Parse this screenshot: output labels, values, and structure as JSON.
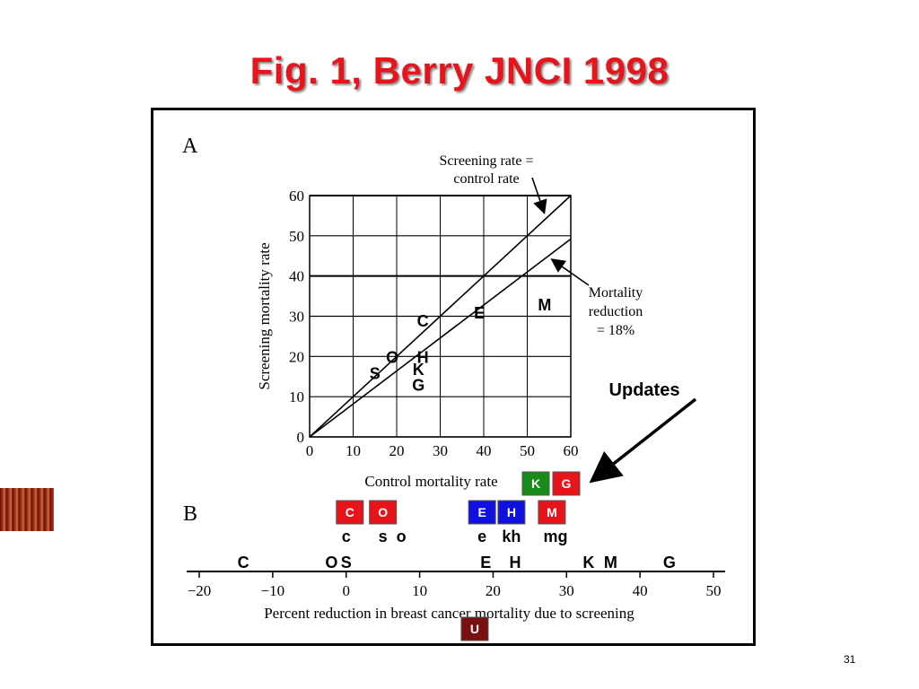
{
  "slide": {
    "title": "Fig. 1, Berry JNCI 1998",
    "page_number": "31",
    "updates_label": "Updates"
  },
  "colors": {
    "title": "#e8141b",
    "red_box": "#e8141b",
    "green_box": "#1a8a1a",
    "blue_box": "#1010e0",
    "maroon_box": "#7a1010"
  },
  "chart_data": [
    {
      "type": "scatter",
      "panel_label": "A",
      "xlabel": "Control mortality rate",
      "ylabel": "Screening mortality rate",
      "xlim": [
        0,
        60
      ],
      "ylim": [
        0,
        60
      ],
      "x_ticks": [
        "0",
        "10",
        "20",
        "30",
        "40",
        "50",
        "60"
      ],
      "y_ticks": [
        "0",
        "10",
        "20",
        "30",
        "40",
        "50",
        "60"
      ],
      "grid": true,
      "lines": [
        {
          "label": "Screening rate = control rate",
          "slope": 1.0
        },
        {
          "label": "Mortality reduction = 18%",
          "slope": 0.82
        }
      ],
      "points": [
        {
          "label": "S",
          "x": 15,
          "y": 16
        },
        {
          "label": "O",
          "x": 19,
          "y": 20
        },
        {
          "label": "G",
          "x": 25,
          "y": 13
        },
        {
          "label": "K",
          "x": 25,
          "y": 17
        },
        {
          "label": "H",
          "x": 26,
          "y": 20
        },
        {
          "label": "C",
          "x": 26,
          "y": 29
        },
        {
          "label": "E",
          "x": 39,
          "y": 31
        },
        {
          "label": "M",
          "x": 54,
          "y": 33
        }
      ]
    },
    {
      "type": "scatter",
      "panel_label": "B",
      "xlabel": "Percent reduction in breast cancer mortality due to screening",
      "xlim": [
        -20,
        50
      ],
      "x_ticks": [
        "−20",
        "−10",
        "0",
        "10",
        "20",
        "30",
        "40",
        "50"
      ],
      "points": [
        {
          "label": "C",
          "x": -14
        },
        {
          "label": "O",
          "x": -2
        },
        {
          "label": "S",
          "x": 0
        },
        {
          "label": "E",
          "x": 19
        },
        {
          "label": "H",
          "x": 23
        },
        {
          "label": "K",
          "x": 33
        },
        {
          "label": "M",
          "x": 36
        },
        {
          "label": "G",
          "x": 44
        }
      ],
      "update_points": [
        {
          "label": "c",
          "x": 0
        },
        {
          "label": "s",
          "x": 5
        },
        {
          "label": "o",
          "x": 7.5
        },
        {
          "label": "e",
          "x": 18.5
        },
        {
          "label": "kh",
          "x": 22.5
        },
        {
          "label": "mg",
          "x": 28.5
        }
      ],
      "update_boxes": [
        {
          "label": "C",
          "color": "red",
          "x": 0.5
        },
        {
          "label": "O",
          "color": "red",
          "x": 5
        },
        {
          "label": "E",
          "color": "blue",
          "x": 18.5
        },
        {
          "label": "H",
          "color": "blue",
          "x": 22.5
        },
        {
          "label": "M",
          "color": "red",
          "x": 28
        },
        {
          "label": "U",
          "color": "maroon",
          "x": 17.5
        }
      ],
      "panel_a_update_boxes": [
        {
          "label": "K",
          "color": "green"
        },
        {
          "label": "G",
          "color": "red"
        }
      ]
    }
  ]
}
